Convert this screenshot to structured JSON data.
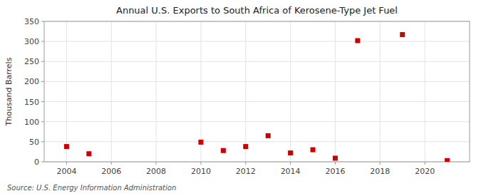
{
  "chart_data": {
    "type": "scatter",
    "title": "Annual U.S. Exports to South Africa of Kerosene-Type Jet Fuel",
    "ylabel": "Thousand Barrels",
    "source": "Source: U.S. Energy Information Administration",
    "x": [
      2004,
      2005,
      2010,
      2011,
      2012,
      2013,
      2014,
      2015,
      2016,
      2017,
      2019,
      2021
    ],
    "values": [
      38,
      20,
      49,
      28,
      38,
      65,
      22,
      30,
      9,
      302,
      317,
      3
    ],
    "color": "#cc0000",
    "marker": "square",
    "xlim": [
      2003.0,
      2022.0
    ],
    "ylim": [
      0,
      350
    ],
    "xticks": [
      2004,
      2006,
      2008,
      2010,
      2012,
      2014,
      2016,
      2018,
      2020
    ],
    "yticks": [
      0,
      50,
      100,
      150,
      200,
      250,
      300,
      350
    ],
    "grid": true
  }
}
